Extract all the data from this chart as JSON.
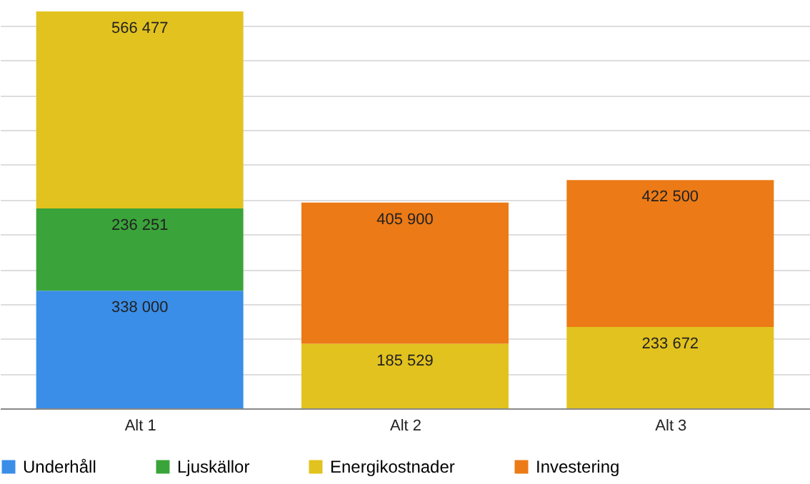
{
  "chart_data": {
    "type": "bar",
    "stacked": true,
    "data_labels": true,
    "categories": [
      "Alt 1",
      "Alt 2",
      "Alt 3"
    ],
    "series": [
      {
        "name": "Underhåll",
        "color": "#3a8ee8",
        "values": [
          338000,
          null,
          null
        ]
      },
      {
        "name": "Ljuskällor",
        "color": "#3aa43a",
        "values": [
          236251,
          null,
          null
        ]
      },
      {
        "name": "Energikostnader",
        "color": "#e2c21e",
        "values": [
          566477,
          185529,
          233672
        ]
      },
      {
        "name": "Investering",
        "color": "#ec7a16",
        "values": [
          null,
          405900,
          422500
        ]
      }
    ],
    "grid": "y",
    "tick_labels": "x",
    "legend": "bottom"
  }
}
